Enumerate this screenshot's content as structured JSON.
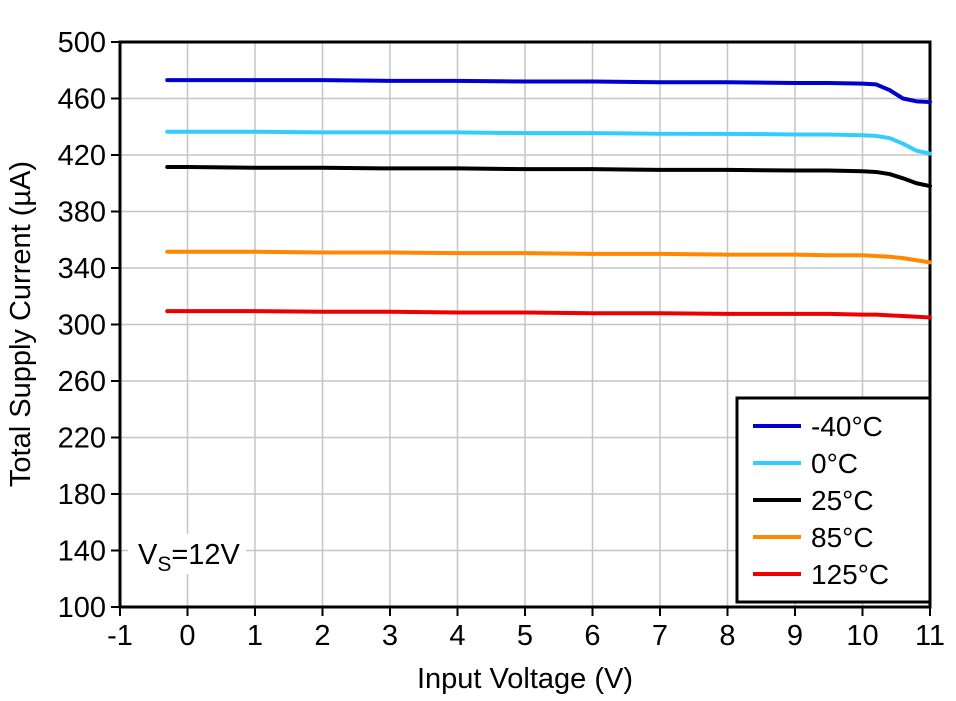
{
  "chart_data": {
    "type": "line",
    "title": "",
    "xlabel": "Input Voltage (V)",
    "ylabel": "Total Supply Current (µA)",
    "xlim": [
      -1,
      11
    ],
    "ylim": [
      100,
      500
    ],
    "xticks": [
      -1,
      0,
      1,
      2,
      3,
      4,
      5,
      6,
      7,
      8,
      9,
      10,
      11
    ],
    "yticks": [
      100,
      140,
      180,
      220,
      260,
      300,
      340,
      380,
      420,
      460,
      500
    ],
    "grid": true,
    "legend_position": "bottom-right",
    "annotation": {
      "text": "VS=12V",
      "main": "V",
      "sub": "S",
      "rest": "=12V"
    },
    "colors": {
      "grid": "#c6c6c6",
      "axis": "#000000",
      "background": "#ffffff"
    },
    "x": [
      -0.3,
      0,
      1,
      2,
      3,
      4,
      5,
      6,
      7,
      8,
      9,
      9.5,
      10,
      10.2,
      10.4,
      10.6,
      10.8,
      11
    ],
    "series": [
      {
        "name": "-40°C",
        "color": "#0000d0",
        "values": [
          473,
          473,
          473,
          473,
          472.5,
          472.5,
          472,
          472,
          471.5,
          471.5,
          471,
          471,
          470.5,
          470,
          466,
          460,
          458,
          457.5
        ]
      },
      {
        "name": "0°C",
        "color": "#33ccff",
        "values": [
          436.5,
          436.5,
          436.5,
          436,
          436,
          436,
          435.5,
          435.5,
          435,
          435,
          434.5,
          434.5,
          434,
          433.5,
          432,
          428,
          423,
          421
        ]
      },
      {
        "name": "25°C",
        "color": "#000000",
        "values": [
          411.5,
          411.5,
          411,
          411,
          410.5,
          410.5,
          410,
          410,
          409.5,
          409.5,
          409,
          409,
          408.5,
          408,
          406.5,
          403.5,
          400,
          398
        ]
      },
      {
        "name": "85°C",
        "color": "#ff8800",
        "values": [
          351.5,
          351.5,
          351.5,
          351,
          351,
          350.5,
          350.5,
          350,
          350,
          349.5,
          349.5,
          349,
          349,
          348.5,
          348,
          347,
          345.5,
          344
        ]
      },
      {
        "name": "125°C",
        "color": "#ee0000",
        "values": [
          309.5,
          309.5,
          309.5,
          309,
          309,
          308.5,
          308.5,
          308,
          308,
          307.5,
          307.5,
          307.5,
          307,
          307,
          306.5,
          306,
          305.5,
          305
        ]
      }
    ]
  }
}
